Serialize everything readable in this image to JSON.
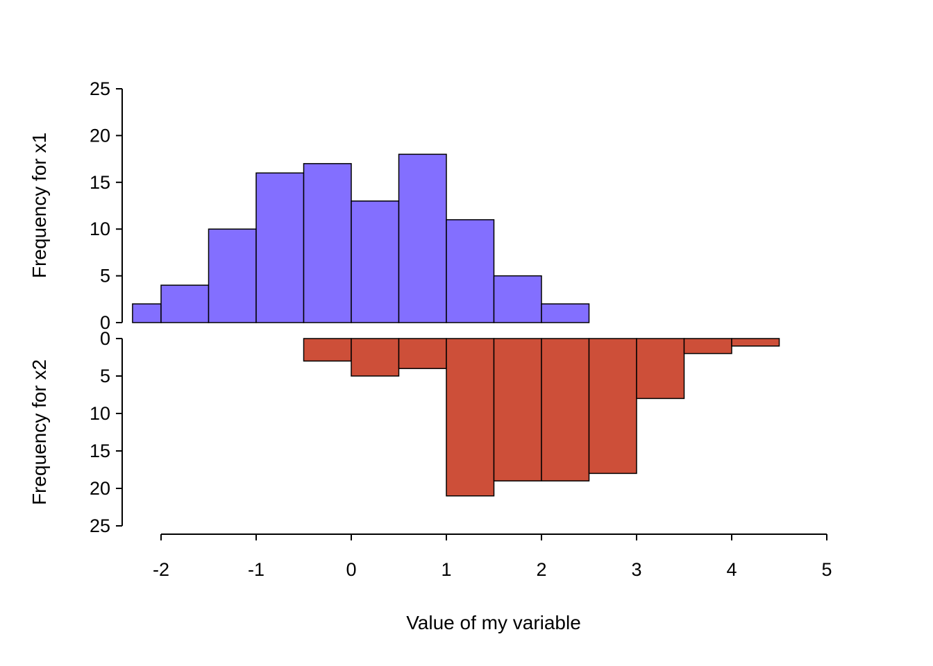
{
  "xlabel": "Value of my variable",
  "xticks": [
    -2,
    -1,
    0,
    1,
    2,
    3,
    4,
    5
  ],
  "xlim": [
    -2.41,
    5.04
  ],
  "background_color": "#FFFFFF",
  "axis_color": "#000000",
  "chart_data": [
    {
      "type": "bar",
      "subtype": "histogram",
      "series_name": "x1",
      "ylabel": "Frequency for x1",
      "orientation": "up",
      "bar_color": "#836FFF",
      "bar_border_color": "#000000",
      "bin_edges": [
        -2.3,
        -2,
        -1.5,
        -1,
        -0.5,
        0,
        0.5,
        1,
        1.5,
        2,
        2.5
      ],
      "counts": [
        2,
        4,
        10,
        16,
        17,
        13,
        18,
        11,
        5,
        2
      ],
      "ylim": [
        0,
        25
      ],
      "yticks": [
        0,
        5,
        10,
        15,
        20,
        25
      ],
      "grid": false,
      "legend": false
    },
    {
      "type": "bar",
      "subtype": "histogram",
      "series_name": "x2",
      "ylabel": "Frequency for x2",
      "orientation": "down",
      "bar_color": "#CD4F39",
      "bar_border_color": "#000000",
      "bin_edges": [
        -0.5,
        0,
        0.5,
        1,
        1.5,
        2,
        2.5,
        3,
        3.5,
        4,
        4.5
      ],
      "counts": [
        3,
        5,
        4,
        21,
        19,
        19,
        18,
        8,
        2,
        1
      ],
      "ylim": [
        0,
        25
      ],
      "yticks": [
        0,
        5,
        10,
        15,
        20,
        25
      ],
      "grid": false,
      "legend": false
    }
  ]
}
